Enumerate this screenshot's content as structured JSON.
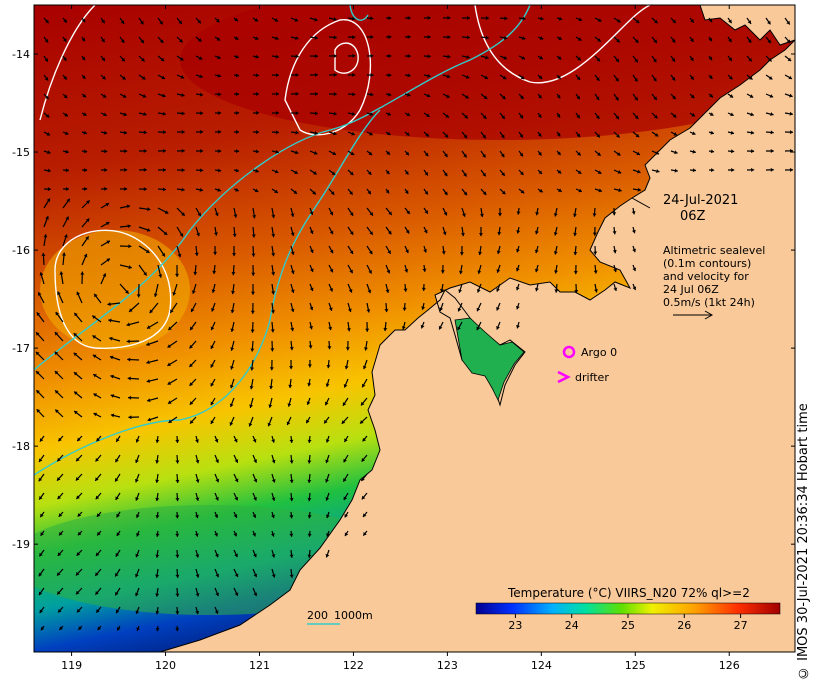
{
  "axes": {
    "x_ticks": [
      "119",
      "120",
      "121",
      "122",
      "123",
      "124",
      "125",
      "126"
    ],
    "y_ticks": [
      "-14",
      "-15",
      "-16",
      "-17",
      "-18",
      "-19"
    ],
    "xlim": [
      118.6,
      126.7
    ],
    "ylim": [
      -20.1,
      -13.5
    ]
  },
  "annotations": {
    "date_line1": "24-Jul-2021",
    "date_line2": "06Z",
    "legend_line1": "Altimetric sealevel",
    "legend_line2": "(0.1m contours)",
    "legend_line3": "and velocity for",
    "legend_line4": "24 Jul 06Z",
    "legend_line5": "0.5m/s (1kt 24h)"
  },
  "markers": {
    "argo_label": "Argo 0",
    "drifter_label": "drifter",
    "marker_color": "#ff00ff"
  },
  "bathymetry": {
    "label1": "200",
    "label2": "1000m",
    "color": "#33cccc"
  },
  "colorbar": {
    "title": "Temperature (°C) VIIRS_N20 72% ql>=2",
    "ticks": [
      "23",
      "24",
      "25",
      "26",
      "27"
    ],
    "range": [
      22.3,
      27.7
    ]
  },
  "credit": "© IMOS 30-Jul-2021 20:36:34 Hobart time",
  "colors": {
    "land": "#f9c999",
    "sea_warm": "#a80000",
    "sea_cool": "#003399"
  }
}
